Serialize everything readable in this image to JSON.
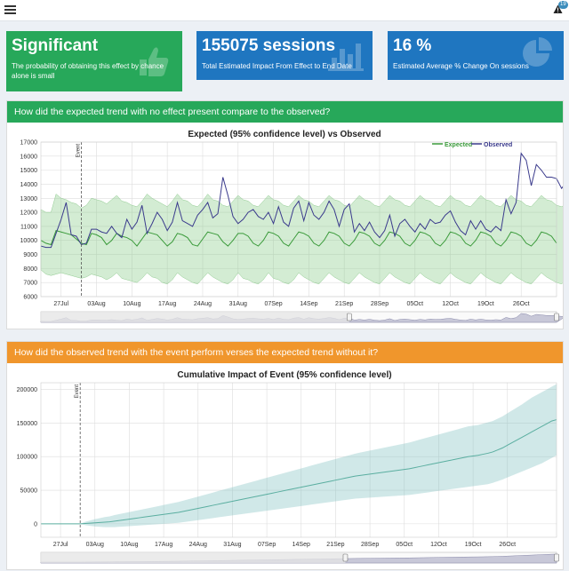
{
  "header": {
    "alert_count": "19"
  },
  "boxes": [
    {
      "title": "Significant",
      "subtitle": "The probability of obtaining this effect by chance alone is small",
      "icon": "thumbs-up-icon",
      "color": "#27a85a"
    },
    {
      "title": "155075 sessions",
      "subtitle": "Total Estimated Impact From Effect to End Date",
      "icon": "bar-chart-icon",
      "color": "#1f76c0"
    },
    {
      "title": "16 %",
      "subtitle": "Estimated Average % Change On sessions",
      "icon": "pie-chart-icon",
      "color": "#1f76c0"
    }
  ],
  "panels": [
    {
      "question": "How did the expected trend with no effect present compare to the observed?",
      "color": "#27a85a"
    },
    {
      "question": "How did the observed trend with the event perform verses the expected trend without it?",
      "color": "#f0962c"
    }
  ],
  "chart_data": [
    {
      "type": "line",
      "title": "Expected (95% confidence level) vs Observed",
      "x_start": "2020-07-23",
      "xticks": [
        "27Jul",
        "03Aug",
        "10Aug",
        "17Aug",
        "24Aug",
        "31Aug",
        "07Sep",
        "14Sep",
        "21Sep",
        "28Sep",
        "05Oct",
        "12Oct",
        "19Oct",
        "26Oct"
      ],
      "ylim": [
        6000,
        17000
      ],
      "yticks": [
        6000,
        7000,
        8000,
        9000,
        10000,
        11000,
        12000,
        13000,
        14000,
        15000,
        16000,
        17000
      ],
      "event_label": "Event",
      "event_date": "2020-07-31",
      "legend_position": "top-right",
      "series": [
        {
          "name": "Expected",
          "color": "#3a9a3a",
          "values": [
            10000,
            9800,
            9700,
            10700,
            10600,
            10500,
            10400,
            10100,
            9800,
            9700,
            10500,
            10400,
            10200,
            9700,
            10000,
            10500,
            10300,
            10200,
            10000,
            9600,
            10100,
            10600,
            10500,
            10400,
            10000,
            9600,
            9900,
            10500,
            10400,
            10200,
            9700,
            9600,
            10100,
            10600,
            10500,
            10400,
            9900,
            9600,
            10000,
            10500,
            10500,
            10300,
            9800,
            9600,
            10000,
            10600,
            10500,
            10300,
            9800,
            9600,
            10100,
            10600,
            10500,
            10300,
            9800,
            9600,
            10000,
            10600,
            10500,
            10300,
            9800,
            9600,
            10000,
            10600,
            10500,
            10300,
            9800,
            9600,
            10000,
            10600,
            10500,
            10300,
            9800,
            9600,
            10000,
            10600,
            10500,
            10300,
            9800,
            9600,
            10000,
            10600,
            10500,
            10300,
            9800,
            9600,
            10000,
            10600,
            10500,
            10300,
            9800,
            9600,
            10000,
            10600,
            10500,
            10300,
            9800,
            9600,
            10000,
            10600,
            10500,
            10300,
            9800
          ]
        },
        {
          "name": "Observed",
          "color": "#3a3a8c",
          "values": [
            9600,
            9500,
            9500,
            10500,
            11500,
            12700,
            10400,
            10300,
            9700,
            9800,
            10800,
            10800,
            10600,
            10500,
            11000,
            10500,
            10200,
            11500,
            10800,
            11300,
            12500,
            10500,
            11200,
            12000,
            11500,
            10700,
            11300,
            12700,
            11400,
            11200,
            11000,
            11800,
            12200,
            12700,
            11600,
            11900,
            14500,
            13200,
            11700,
            11200,
            11500,
            12000,
            12200,
            11700,
            11500,
            12000,
            11200,
            12400,
            11300,
            11000,
            12300,
            12800,
            11400,
            12700,
            11800,
            11500,
            12000,
            12800,
            12200,
            11000,
            12200,
            12600,
            10600,
            11200,
            10700,
            11300,
            10600,
            10200,
            10700,
            11800,
            10300,
            11200,
            11500,
            11000,
            10600,
            11200,
            10800,
            11500,
            11200,
            11300,
            11800,
            12100,
            11300,
            10700,
            10400,
            11400,
            10800,
            11400,
            10800,
            10600,
            11000,
            10700,
            12900,
            11900,
            12700,
            16200,
            15700,
            13900,
            15400,
            15000,
            14500,
            14500,
            14400,
            13700,
            14200
          ]
        }
      ],
      "band": {
        "name": "95% confidence",
        "lower": [
          7900,
          7600,
          7500,
          7600,
          7700,
          7600,
          7500,
          7400,
          7300,
          7400,
          7600,
          7500,
          7400,
          7200,
          7400,
          7700,
          7300,
          7200,
          7100,
          7000,
          7300,
          7700,
          7400,
          7300,
          7000,
          6900,
          7200,
          7700,
          7400,
          7200,
          7000,
          6900,
          7300,
          7700,
          7400,
          7200,
          7000,
          6900,
          7200,
          7700,
          7300,
          7200,
          7000,
          6900,
          7200,
          7700,
          7300,
          7200,
          7000,
          6900,
          7200,
          7700,
          7400,
          7200,
          7000,
          6900,
          7300,
          7700,
          7400,
          7200,
          7000,
          6900,
          7300,
          7700,
          7400,
          7200,
          7000,
          6900,
          7300,
          7700,
          7400,
          7200,
          7000,
          6900,
          7300,
          7700,
          7400,
          7200,
          7000,
          6900,
          7300,
          7700,
          7400,
          7200,
          7000,
          6900,
          7300,
          7700,
          7400,
          7200,
          7000,
          6900,
          7300,
          7700,
          7400,
          7200,
          7000,
          6900,
          7300,
          7700,
          7400,
          7200,
          7000,
          6900,
          7200
        ],
        "upper": [
          12200,
          12000,
          12000,
          13300,
          13000,
          12900,
          12700,
          12600,
          12300,
          12500,
          13000,
          12900,
          12800,
          12600,
          12900,
          13200,
          12800,
          12700,
          12500,
          12400,
          12800,
          13300,
          13000,
          12800,
          12600,
          12400,
          12800,
          13300,
          12900,
          12800,
          12500,
          12400,
          12800,
          13300,
          12900,
          12800,
          12500,
          12400,
          12800,
          13200,
          12900,
          12800,
          12500,
          12400,
          12800,
          13200,
          12900,
          12800,
          12500,
          12400,
          12800,
          13200,
          12900,
          12800,
          12500,
          12400,
          12800,
          13200,
          12900,
          12800,
          12500,
          12400,
          12800,
          13200,
          12900,
          12800,
          12500,
          12400,
          12800,
          13200,
          12900,
          12800,
          12500,
          12400,
          12800,
          13200,
          12900,
          12800,
          12500,
          12400,
          12800,
          13200,
          12900,
          12800,
          12500,
          12400,
          12800,
          13200,
          12900,
          12800,
          12500,
          12400,
          12800,
          13200,
          12900,
          12800,
          12500,
          12400,
          12800,
          13200,
          12900,
          12800,
          12500,
          12400,
          12600
        ]
      },
      "grid": true
    },
    {
      "type": "area",
      "title": "Cumulative Impact of Event (95% confidence level)",
      "x_start": "2020-07-23",
      "xticks": [
        "27Jul",
        "03Aug",
        "10Aug",
        "17Aug",
        "24Aug",
        "31Aug",
        "07Sep",
        "14Sep",
        "21Sep",
        "28Sep",
        "05Oct",
        "12Oct",
        "19Oct",
        "26Oct"
      ],
      "ylim": [
        -20000,
        210000
      ],
      "yticks": [
        0,
        50000,
        100000,
        150000,
        200000
      ],
      "event_label": "Event",
      "event_date": "2020-07-31",
      "series": [
        {
          "name": "Cumulative impact",
          "color": "#5aaea0",
          "values": [
            0,
            0,
            0,
            0,
            0,
            0,
            0,
            0,
            0,
            500,
            1000,
            1500,
            2000,
            2500,
            3000,
            4000,
            5000,
            6000,
            7000,
            8000,
            9000,
            10000,
            11000,
            12000,
            13000,
            14000,
            15000,
            16000,
            17000,
            18500,
            20000,
            21500,
            23000,
            24500,
            26000,
            27500,
            29000,
            30500,
            32000,
            33500,
            35000,
            36500,
            38000,
            39500,
            41000,
            42500,
            44000,
            45500,
            47000,
            48500,
            50000,
            51500,
            53000,
            54500,
            56000,
            57500,
            59000,
            60500,
            62000,
            63500,
            65000,
            66500,
            68000,
            69500,
            71000,
            72000,
            73000,
            74000,
            75000,
            76000,
            77000,
            78000,
            79000,
            80000,
            81000,
            82000,
            83500,
            85000,
            86500,
            88000,
            89500,
            91000,
            92500,
            94000,
            95500,
            97000,
            98500,
            100000,
            101000,
            102000,
            103500,
            105000,
            107000,
            110000,
            113000,
            117000,
            121000,
            125000,
            129000,
            133000,
            137000,
            141000,
            145000,
            149000,
            153000,
            155075
          ]
        }
      ],
      "band": {
        "name": "95% confidence",
        "lower": [
          0,
          0,
          0,
          0,
          0,
          0,
          0,
          0,
          0,
          -2000,
          -3000,
          -4000,
          -4500,
          -5000,
          -5000,
          -5000,
          -4500,
          -4000,
          -3500,
          -3000,
          -2500,
          -2000,
          -1500,
          -1000,
          -500,
          0,
          500,
          1000,
          1500,
          2500,
          3500,
          4500,
          5500,
          6500,
          7500,
          8500,
          9500,
          10500,
          11500,
          12500,
          13500,
          14500,
          15500,
          16500,
          17500,
          18500,
          19500,
          20500,
          21500,
          22500,
          23500,
          24500,
          25500,
          26500,
          27500,
          28500,
          29500,
          30500,
          31500,
          32500,
          33500,
          34500,
          35500,
          36500,
          37500,
          38000,
          38500,
          39000,
          39500,
          40000,
          40500,
          41000,
          41500,
          42000,
          42500,
          43000,
          44000,
          45000,
          46000,
          47000,
          48000,
          49000,
          50000,
          51000,
          52000,
          53000,
          54000,
          55000,
          56000,
          57000,
          58000,
          59000,
          61000,
          63500,
          66000,
          69000,
          72000,
          75000,
          78000,
          81000,
          84000,
          87000,
          90000,
          94000,
          98000,
          102000
        ],
        "upper": [
          0,
          0,
          0,
          0,
          0,
          0,
          0,
          0,
          0,
          3000,
          5000,
          7000,
          8500,
          10000,
          11000,
          13000,
          14500,
          16000,
          17500,
          19000,
          20500,
          22000,
          23500,
          25000,
          26500,
          28000,
          29500,
          31000,
          32500,
          34500,
          36500,
          38500,
          40500,
          42500,
          44500,
          46500,
          48500,
          50500,
          52500,
          54500,
          56500,
          58500,
          60500,
          62500,
          64500,
          66500,
          68500,
          70500,
          72500,
          74500,
          76500,
          78500,
          80500,
          82500,
          84500,
          86500,
          88500,
          90500,
          92500,
          94500,
          96500,
          98500,
          100500,
          102500,
          104500,
          106000,
          107500,
          109000,
          110500,
          112000,
          113500,
          115000,
          116500,
          118000,
          119500,
          121000,
          123000,
          125000,
          127000,
          129000,
          131000,
          133000,
          135000,
          137000,
          139000,
          141000,
          143000,
          145000,
          146000,
          147000,
          149000,
          151000,
          153000,
          156500,
          160000,
          164500,
          169000,
          173500,
          178000,
          183000,
          188000,
          192000,
          196000,
          200000,
          204000,
          208000
        ]
      },
      "grid": true
    }
  ]
}
